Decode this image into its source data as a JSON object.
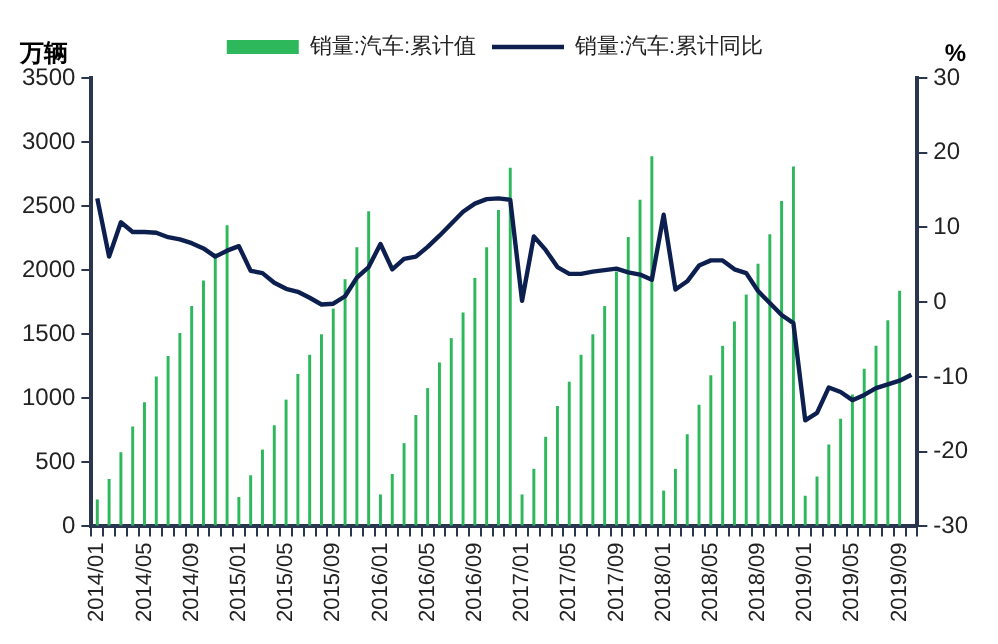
{
  "chart_data": {
    "type": "bar",
    "ylabel": "万辆",
    "y2label": "%",
    "categories": [
      "2014/01",
      null,
      null,
      null,
      "2014/05",
      null,
      null,
      null,
      "2014/09",
      null,
      null,
      null,
      "2015/01",
      null,
      null,
      null,
      "2015/05",
      null,
      null,
      null,
      "2015/09",
      null,
      null,
      null,
      "2016/01",
      null,
      null,
      null,
      "2016/05",
      null,
      null,
      null,
      "2016/09",
      null,
      null,
      null,
      "2017/01",
      null,
      null,
      null,
      "2017/05",
      null,
      null,
      null,
      "2017/09",
      null,
      null,
      null,
      "2018/01",
      null,
      null,
      null,
      "2018/05",
      null,
      null,
      null,
      "2018/09",
      null,
      null,
      null,
      "2019/01",
      null,
      null,
      null,
      "2019/05",
      null,
      null,
      null,
      "2019/09",
      null
    ],
    "series": [
      {
        "name": "销量:汽车:累计值",
        "color": "#2eb85c",
        "values": [
          210,
          370,
          580,
          780,
          970,
          1170,
          1330,
          1510,
          1720,
          1920,
          2130,
          2350,
          230,
          400,
          600,
          790,
          990,
          1190,
          1340,
          1500,
          1700,
          1930,
          2180,
          2460,
          250,
          410,
          650,
          870,
          1080,
          1280,
          1470,
          1670,
          1940,
          2180,
          2470,
          2800,
          250,
          450,
          700,
          940,
          1130,
          1340,
          1500,
          1720,
          1990,
          2260,
          2550,
          2890,
          280,
          450,
          720,
          950,
          1180,
          1410,
          1600,
          1810,
          2050,
          2280,
          2540,
          2810,
          240,
          390,
          640,
          840,
          1030,
          1230,
          1410,
          1610,
          1840,
          null
        ]
      },
      {
        "name": "销量:汽车:累计同比",
        "type": "line",
        "axis": "y2",
        "color": "#0d1f4f",
        "values": [
          13.9,
          6.1,
          10.7,
          9.4,
          9.4,
          9.3,
          8.7,
          8.4,
          7.9,
          7.2,
          6.1,
          6.9,
          7.5,
          4.2,
          3.9,
          2.6,
          1.8,
          1.4,
          0.6,
          -0.3,
          -0.2,
          0.8,
          3.3,
          4.7,
          7.8,
          4.4,
          5.8,
          6.1,
          7.4,
          8.9,
          10.5,
          12.1,
          13.2,
          13.8,
          13.9,
          13.7,
          0.2,
          8.8,
          7.0,
          4.7,
          3.8,
          3.8,
          4.1,
          4.3,
          4.5,
          4.0,
          3.7,
          3.0,
          11.7,
          1.7,
          2.8,
          4.9,
          5.6,
          5.6,
          4.4,
          3.9,
          1.5,
          -0.1,
          -1.7,
          -2.8,
          -15.8,
          -14.8,
          -11.4,
          -12.0,
          -13.1,
          -12.4,
          -11.5,
          -11.0,
          -10.5,
          -9.7
        ]
      }
    ],
    "ylim": [
      0,
      3500
    ],
    "yticks": [
      0,
      500,
      1000,
      1500,
      2000,
      2500,
      3000,
      3500
    ],
    "y2lim": [
      -30,
      30
    ],
    "y2ticks": [
      -30,
      -20,
      -10,
      0,
      10,
      20,
      30
    ],
    "grid": false,
    "legend": "top",
    "marker": "none",
    "line_style": "solid"
  }
}
